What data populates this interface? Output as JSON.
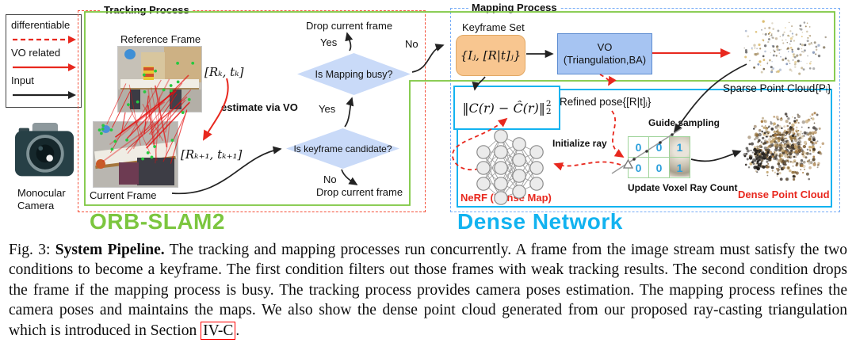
{
  "colors": {
    "green": "#7cc63f",
    "cyan": "#12b3f0",
    "red": "#e8281e",
    "tracking-border": "#f4503a",
    "mapping-border": "#79aef7",
    "diamond-fill": "#c9daf8",
    "keyframe-fill": "#f8c690",
    "keyframe-border": "#e2a865",
    "vo-fill": "#a6c4f2",
    "vo-border": "#5b8bd0",
    "voxel-line": "#9fd49a",
    "voxel-text": "#2b9fdb"
  },
  "legend": {
    "items": [
      {
        "label": "differentiable",
        "arrow": "red-dashed-arrow"
      },
      {
        "label": "VO related",
        "arrow": "red-solid-arrow"
      },
      {
        "label": "Input",
        "arrow": "black-solid-arrow"
      }
    ]
  },
  "camera": {
    "line1": "Monocular",
    "line2": "Camera"
  },
  "tracking": {
    "title": "Tracking Process",
    "reference_frame_label": "Reference Frame",
    "current_frame_label": "Current Frame",
    "pose_k": "[Rₖ, tₖ]",
    "pose_k1": "[Rₖ₊₁, tₖ₊₁]",
    "estimate_label": "estimate via VO"
  },
  "flow": {
    "drop_top": "Drop current frame",
    "yes1": "Yes",
    "no1": "No",
    "decision1": "Is Mapping busy?",
    "yes2": "Yes",
    "decision2": "Is keyframe candidate?",
    "no2": "No",
    "drop_bottom": "Drop current frame"
  },
  "mapping": {
    "title": "Mapping Process",
    "keyframe_set_label": "Keyframe Set",
    "keyframe_set_value": "{Iⱼ, [R|t]ⱼ}",
    "vo_line1": "VO",
    "vo_line2": "(Triangulation,BA)",
    "refined_pose": "Refined pose{[R|t]ⱼ}",
    "loss_main": "‖C(r) − Ĉ(r)‖",
    "loss_sup": "2",
    "loss_sub": "2",
    "nerf_label": "NeRF (Dense Map)",
    "initialize_ray": "Initialize ray",
    "guide_sampling": "Guide sampling",
    "update_voxel": "Update Voxel Ray Count",
    "sparse_label": "Sparse Point Cloud{Pᵢ}",
    "dense_label": "Dense Point Cloud",
    "voxel_rows": [
      [
        "0",
        "0",
        "1"
      ],
      [
        "0",
        "0",
        "1"
      ]
    ]
  },
  "banners": {
    "orb": "ORB-SLAM2",
    "dense": "Dense Network"
  },
  "caption": {
    "fig": "Fig. 3: ",
    "bold": "System Pipeline.",
    "body": " The tracking and mapping processes run concurrently. A frame from the image stream must satisfy the two conditions to become a keyframe. The first condition filters out those frames with weak tracking results. The second condition drops the frame if the mapping process is busy. The tracking process provides camera poses estimation. The mapping process refines the camera poses and maintains the maps. We also show the dense point cloud generated from our proposed ray-casting triangulation which is introduced in Section ",
    "link": "IV-C",
    "suffix": "."
  }
}
